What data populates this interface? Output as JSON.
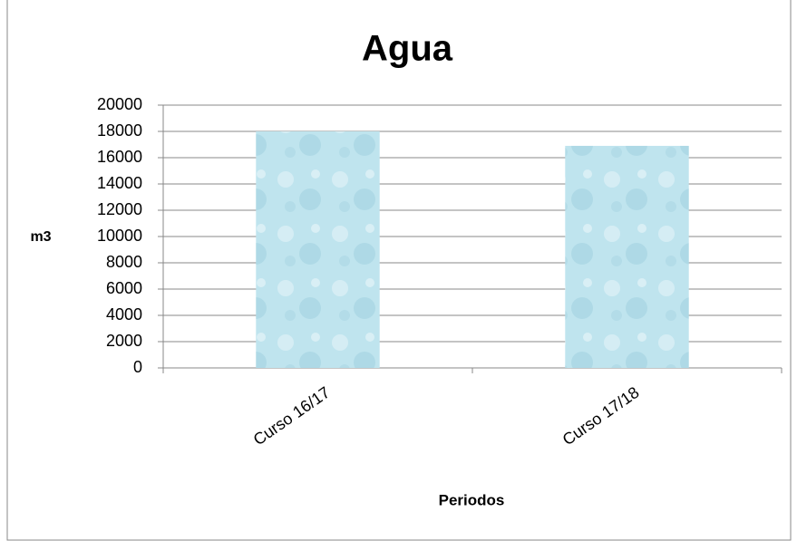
{
  "chart_data": {
    "type": "bar",
    "title": "Agua",
    "x_label": "Periodos",
    "y_label": "m3",
    "categories": [
      "Curso 16/17",
      "Curso 17/18"
    ],
    "values": [
      18000,
      16900
    ],
    "color": "#bfe4ee",
    "ylim": [
      0,
      20000
    ],
    "yticks": [
      0,
      2000,
      4000,
      6000,
      8000,
      10000,
      12000,
      14000,
      16000,
      18000,
      20000
    ],
    "grid": true
  }
}
